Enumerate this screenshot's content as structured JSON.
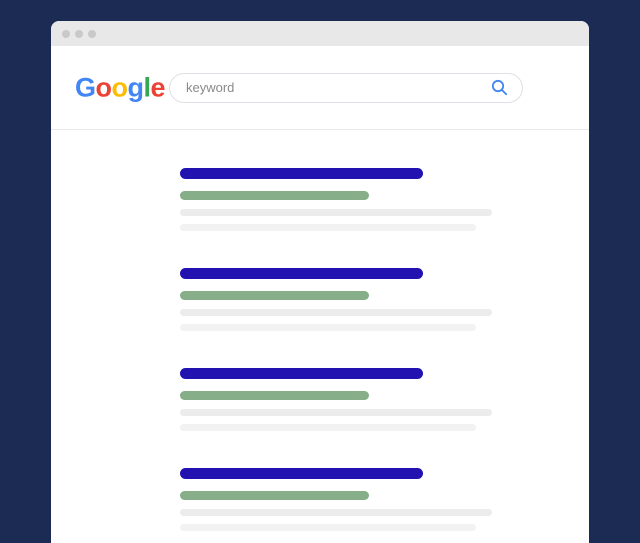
{
  "colors": {
    "page_bg": "#1c2b53",
    "titlebar_bg": "#e8e8e8",
    "dot": "#c9c9c9",
    "window_bg": "#ffffff",
    "divider": "#e9e9e9",
    "search_border": "#dde0e4",
    "search_text": "#8a8a8a",
    "search_icon": "#4285f4",
    "bar_title": "#2213b0",
    "bar_url": "#85ae89",
    "bar_text_primary": "#ececec",
    "bar_text_secondary": "#f2f2f2",
    "logo_blue": "#4285F4",
    "logo_red": "#EA4335",
    "logo_yellow": "#FBBC05",
    "logo_green": "#34A853"
  },
  "window": {
    "titlebar": {
      "dots": [
        "window-control-dot",
        "window-control-dot",
        "window-control-dot"
      ]
    }
  },
  "header": {
    "logo": {
      "text": "Google",
      "letters": [
        {
          "char": "G",
          "color": "logo_blue"
        },
        {
          "char": "o",
          "color": "logo_red"
        },
        {
          "char": "o",
          "color": "logo_yellow"
        },
        {
          "char": "g",
          "color": "logo_blue"
        },
        {
          "char": "l",
          "color": "logo_green"
        },
        {
          "char": "e",
          "color": "logo_red"
        }
      ]
    },
    "search": {
      "value": "keyword",
      "icon": "magnifier-icon"
    }
  },
  "results": {
    "description": "skeleton placeholder search results",
    "groups": [
      {
        "bars": [
          "title",
          "url",
          "text1",
          "text2"
        ]
      },
      {
        "bars": [
          "title",
          "url",
          "text1",
          "text2"
        ]
      },
      {
        "bars": [
          "title",
          "url",
          "text1",
          "text2"
        ]
      },
      {
        "bars": [
          "title",
          "url",
          "text1",
          "text2"
        ]
      }
    ]
  }
}
